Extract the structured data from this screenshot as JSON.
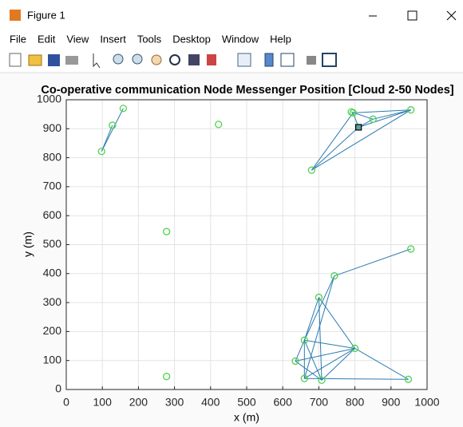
{
  "window": {
    "title": "Figure 1",
    "menu": [
      "File",
      "Edit",
      "View",
      "Insert",
      "Tools",
      "Desktop",
      "Window",
      "Help"
    ]
  },
  "chart_data": {
    "type": "network",
    "title": "Co-operative communication Node Messenger Position [Cloud 2-50 Nodes]",
    "x_label": "x (m)",
    "y_label": "y (m)",
    "xlim": [
      0,
      1000
    ],
    "ylim": [
      0,
      1000
    ],
    "xticks": [
      0,
      100,
      200,
      300,
      400,
      500,
      600,
      700,
      800,
      900,
      1000
    ],
    "yticks": [
      0,
      100,
      200,
      300,
      400,
      500,
      600,
      700,
      800,
      900,
      1000
    ],
    "grid": true,
    "nodes": {
      "color": "#4cd44c",
      "x": [
        98,
        128,
        158,
        422,
        278,
        278,
        680,
        790,
        795,
        850,
        955,
        955,
        743,
        700,
        660,
        635,
        660,
        708,
        800,
        948
      ],
      "y": [
        822,
        912,
        970,
        915,
        545,
        45,
        757,
        958,
        955,
        933,
        965,
        485,
        392,
        318,
        170,
        98,
        38,
        32,
        142,
        35
      ]
    },
    "sink": {
      "color": "#000000",
      "x": 810,
      "y": 905
    },
    "links": {
      "color": "#2b7bb0",
      "x": [
        [
          98,
          158
        ],
        [
          98,
          128
        ],
        [
          680,
          795
        ],
        [
          680,
          810
        ],
        [
          680,
          955
        ],
        [
          795,
          955
        ],
        [
          795,
          810
        ],
        [
          790,
          850
        ],
        [
          810,
          850
        ],
        [
          810,
          955
        ],
        [
          850,
          955
        ],
        [
          955,
          743
        ],
        [
          743,
          660
        ],
        [
          743,
          660
        ],
        [
          700,
          660
        ],
        [
          700,
          800
        ],
        [
          700,
          708
        ],
        [
          660,
          635
        ],
        [
          660,
          660
        ],
        [
          660,
          708
        ],
        [
          660,
          800
        ],
        [
          635,
          800
        ],
        [
          635,
          708
        ],
        [
          660,
          800
        ],
        [
          708,
          800
        ],
        [
          800,
          948
        ],
        [
          660,
          948
        ]
      ],
      "y": [
        [
          822,
          970
        ],
        [
          822,
          912
        ],
        [
          757,
          955
        ],
        [
          757,
          905
        ],
        [
          757,
          965
        ],
        [
          955,
          965
        ],
        [
          955,
          905
        ],
        [
          958,
          933
        ],
        [
          905,
          933
        ],
        [
          905,
          965
        ],
        [
          933,
          965
        ],
        [
          485,
          392
        ],
        [
          392,
          170
        ],
        [
          392,
          38
        ],
        [
          318,
          170
        ],
        [
          318,
          142
        ],
        [
          318,
          32
        ],
        [
          170,
          98
        ],
        [
          170,
          38
        ],
        [
          170,
          32
        ],
        [
          170,
          142
        ],
        [
          98,
          142
        ],
        [
          98,
          32
        ],
        [
          38,
          142
        ],
        [
          32,
          142
        ],
        [
          142,
          35
        ],
        [
          38,
          35
        ]
      ]
    }
  }
}
